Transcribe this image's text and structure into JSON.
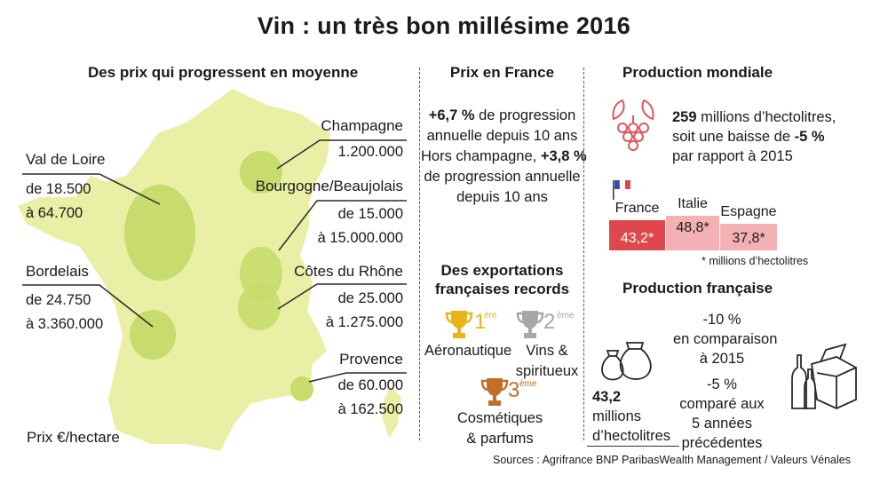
{
  "title": "Vin : un très bon millésime 2016",
  "left": {
    "heading": "Des prix qui progressent en moyenne",
    "regions": [
      {
        "name": "Val de Loire",
        "range": [
          "de 18.500",
          "à 64.700"
        ]
      },
      {
        "name": "Bordelais",
        "range": [
          "de 24.750",
          "à 3.360.000"
        ]
      },
      {
        "name": "Champagne",
        "range": [
          "1.200.000"
        ]
      },
      {
        "name": "Bourgogne/Beaujolais",
        "range": [
          "de 15.000",
          "à 15.000.000"
        ]
      },
      {
        "name": "Côtes du Rhône",
        "range": [
          "de 25.000",
          "à 1.275.000"
        ]
      },
      {
        "name": "Provence",
        "range": [
          "de 60.000",
          "à 162.500"
        ]
      }
    ],
    "unit": "Prix €/hectare"
  },
  "middle": {
    "heading": "Prix en France",
    "text": {
      "l1_bold": "+6,7 %",
      "l1_rest": " de progression",
      "l2": "annuelle depuis 10 ans",
      "l3_pre": "Hors champagne, ",
      "l3_bold": "+3,8 %",
      "l4": "de progression annuelle",
      "l5": "depuis 10 ans"
    },
    "exports_heading": [
      "Des exportations",
      "françaises records"
    ],
    "ranks": [
      {
        "num": "1",
        "suffix": "ère",
        "label": [
          "Aéronautique"
        ],
        "color": "#e8b41c"
      },
      {
        "num": "2",
        "suffix": "ème",
        "label": [
          "Vins &",
          "spiritueux"
        ],
        "color": "#a7a7a7"
      },
      {
        "num": "3",
        "suffix": "ème",
        "label": [
          "Cosmétiques",
          "& parfums"
        ],
        "color": "#c06e2a"
      }
    ]
  },
  "right": {
    "world_heading": "Production mondiale",
    "world_text": {
      "l1_bold": "259",
      "l1_rest": " millions d’hectolitres,",
      "l2_pre": "soit une baisse de ",
      "l2_bold": "-5 %",
      "l3": "par rapport à 2015"
    },
    "chart_data": {
      "type": "bar",
      "categories": [
        "France",
        "Italie",
        "Espagne"
      ],
      "values": [
        43.2,
        48.8,
        37.8
      ],
      "value_labels": [
        "43,2*",
        "48,8*",
        "37,8*"
      ],
      "colors": [
        "#e0474c",
        "#f4b1b3",
        "#f4b1b3"
      ],
      "footnote": "* millions d’hectolitres"
    },
    "french_heading": "Production française",
    "french_volume": [
      "43,2",
      "millions",
      "d’hectolitres"
    ],
    "french_stats": {
      "s1": [
        "-10 %",
        "en comparaison",
        "à 2015"
      ],
      "s2": [
        "-5 %",
        "comparé aux",
        "5 années",
        "précédentes"
      ]
    }
  },
  "sources": "Sources : Agrifrance BNP ParibasWealth Management / Valeurs Vénales",
  "colors": {
    "map_fill": "#e9efa4",
    "bubble": "#c7dc6c",
    "accent_red": "#e0474c",
    "accent_pink": "#f4b1b3",
    "wine_icon": "#e05560"
  }
}
